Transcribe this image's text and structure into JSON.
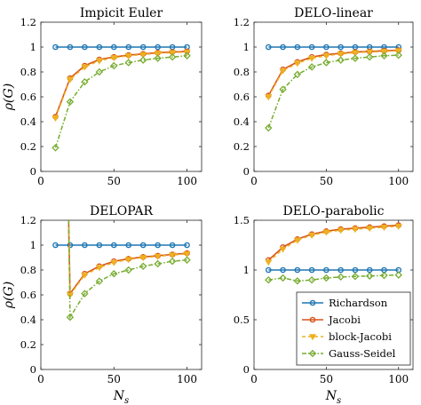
{
  "chart_data": [
    {
      "type": "line",
      "title": "Impicit Euler",
      "xlabel": "",
      "ylabel": "ρ(G)",
      "xlim": [
        0,
        110
      ],
      "ylim": [
        0,
        1.2
      ],
      "xticks": [
        0,
        50,
        100
      ],
      "yticks": [
        0,
        0.2,
        0.4,
        0.6,
        0.8,
        1,
        1.2
      ],
      "tick_labels_x": [
        "0",
        "50",
        "100"
      ],
      "tick_labels_y": [
        "0",
        "0.2",
        "0.4",
        "0.6",
        "0.8",
        "1",
        "1.2"
      ],
      "grid": false,
      "x": [
        10,
        20,
        30,
        40,
        50,
        60,
        70,
        80,
        90,
        100
      ],
      "series": [
        {
          "key": "richardson",
          "values": [
            1,
            1,
            1,
            1,
            1,
            1,
            1,
            1,
            1,
            1
          ]
        },
        {
          "key": "jacobi",
          "values": [
            0.44,
            0.75,
            0.85,
            0.9,
            0.92,
            0.935,
            0.945,
            0.955,
            0.96,
            0.965
          ]
        },
        {
          "key": "block_jacobi",
          "values": [
            0.43,
            0.74,
            0.84,
            0.89,
            0.915,
            0.93,
            0.94,
            0.95,
            0.955,
            0.96
          ]
        },
        {
          "key": "gauss_seidel",
          "values": [
            0.19,
            0.56,
            0.72,
            0.8,
            0.85,
            0.875,
            0.895,
            0.91,
            0.92,
            0.93
          ]
        }
      ]
    },
    {
      "type": "line",
      "title": "DELO-linear",
      "xlabel": "",
      "ylabel": "",
      "xlim": [
        0,
        110
      ],
      "ylim": [
        0,
        1.2
      ],
      "xticks": [
        0,
        50,
        100
      ],
      "yticks": [
        0,
        0.2,
        0.4,
        0.6,
        0.8,
        1,
        1.2
      ],
      "tick_labels_x": [
        "0",
        "50",
        "100"
      ],
      "tick_labels_y": [
        "0",
        "0.2",
        "0.4",
        "0.6",
        "0.8",
        "1",
        "1.2"
      ],
      "grid": false,
      "x": [
        10,
        20,
        30,
        40,
        50,
        60,
        70,
        80,
        90,
        100
      ],
      "series": [
        {
          "key": "richardson",
          "values": [
            1,
            1,
            1,
            1,
            1,
            1,
            1,
            1,
            1,
            1
          ]
        },
        {
          "key": "jacobi",
          "values": [
            0.61,
            0.82,
            0.88,
            0.92,
            0.94,
            0.95,
            0.96,
            0.965,
            0.97,
            0.975
          ]
        },
        {
          "key": "block_jacobi",
          "values": [
            0.6,
            0.81,
            0.87,
            0.91,
            0.93,
            0.945,
            0.955,
            0.96,
            0.965,
            0.97
          ]
        },
        {
          "key": "gauss_seidel",
          "values": [
            0.35,
            0.66,
            0.78,
            0.84,
            0.875,
            0.895,
            0.91,
            0.92,
            0.93,
            0.935
          ]
        }
      ]
    },
    {
      "type": "line",
      "title": "DELOPAR",
      "xlabel": "N_s",
      "ylabel": "ρ(G)",
      "xlim": [
        0,
        110
      ],
      "ylim": [
        0,
        1.2
      ],
      "xticks": [
        0,
        50,
        100
      ],
      "yticks": [
        0,
        0.2,
        0.4,
        0.6,
        0.8,
        1,
        1.2
      ],
      "tick_labels_x": [
        "0",
        "50",
        "100"
      ],
      "tick_labels_y": [
        "0",
        "0.2",
        "0.4",
        "0.6",
        "0.8",
        "1",
        "1.2"
      ],
      "grid": false,
      "x": [
        10,
        20,
        30,
        40,
        50,
        60,
        70,
        80,
        90,
        100
      ],
      "spike_x": 19,
      "series": [
        {
          "key": "richardson",
          "values": [
            1,
            1,
            1,
            1,
            1,
            1,
            1,
            1,
            1,
            1
          ]
        },
        {
          "key": "jacobi",
          "values": [
            null,
            0.61,
            0.77,
            0.83,
            0.87,
            0.89,
            0.905,
            0.915,
            0.925,
            0.935
          ]
        },
        {
          "key": "block_jacobi",
          "values": [
            null,
            0.6,
            0.76,
            0.82,
            0.86,
            0.885,
            0.9,
            0.91,
            0.92,
            0.93
          ]
        },
        {
          "key": "gauss_seidel",
          "values": [
            null,
            0.42,
            0.61,
            0.71,
            0.77,
            0.8,
            0.83,
            0.85,
            0.87,
            0.88
          ]
        }
      ]
    },
    {
      "type": "line",
      "title": "DELO-parabolic",
      "xlabel": "N_s",
      "ylabel": "",
      "xlim": [
        0,
        110
      ],
      "ylim": [
        0,
        1.5
      ],
      "xticks": [
        0,
        50,
        100
      ],
      "yticks": [
        0,
        0.5,
        1,
        1.5
      ],
      "tick_labels_x": [
        "0",
        "50",
        "100"
      ],
      "tick_labels_y": [
        "0",
        "0.5",
        "1",
        "1.5"
      ],
      "grid": false,
      "x": [
        10,
        20,
        30,
        40,
        50,
        60,
        70,
        80,
        90,
        100
      ],
      "legend_position": "lower-right",
      "series": [
        {
          "key": "richardson",
          "name": "Richardson",
          "values": [
            1,
            1,
            1,
            1,
            1,
            1,
            1,
            1,
            1,
            1
          ]
        },
        {
          "key": "jacobi",
          "name": "Jacobi",
          "values": [
            1.1,
            1.23,
            1.31,
            1.36,
            1.39,
            1.41,
            1.42,
            1.43,
            1.44,
            1.45
          ]
        },
        {
          "key": "block_jacobi",
          "name": "block-Jacobi",
          "values": [
            1.08,
            1.21,
            1.3,
            1.35,
            1.38,
            1.4,
            1.41,
            1.42,
            1.43,
            1.44
          ]
        },
        {
          "key": "gauss_seidel",
          "name": "Gauss-Seidel",
          "values": [
            0.9,
            0.92,
            0.89,
            0.9,
            0.92,
            0.93,
            0.935,
            0.94,
            0.945,
            0.95
          ]
        }
      ]
    }
  ],
  "styles": {
    "richardson": {
      "color": "#1f77b4",
      "marker": "circle",
      "dash": "solid"
    },
    "jacobi": {
      "color": "#d95319",
      "marker": "circle",
      "dash": "solid"
    },
    "block_jacobi": {
      "color": "#edb120",
      "marker": "triangle-down",
      "dash": "dashed"
    },
    "gauss_seidel": {
      "color": "#77ac30",
      "marker": "diamond",
      "dash": "dashdot"
    }
  }
}
